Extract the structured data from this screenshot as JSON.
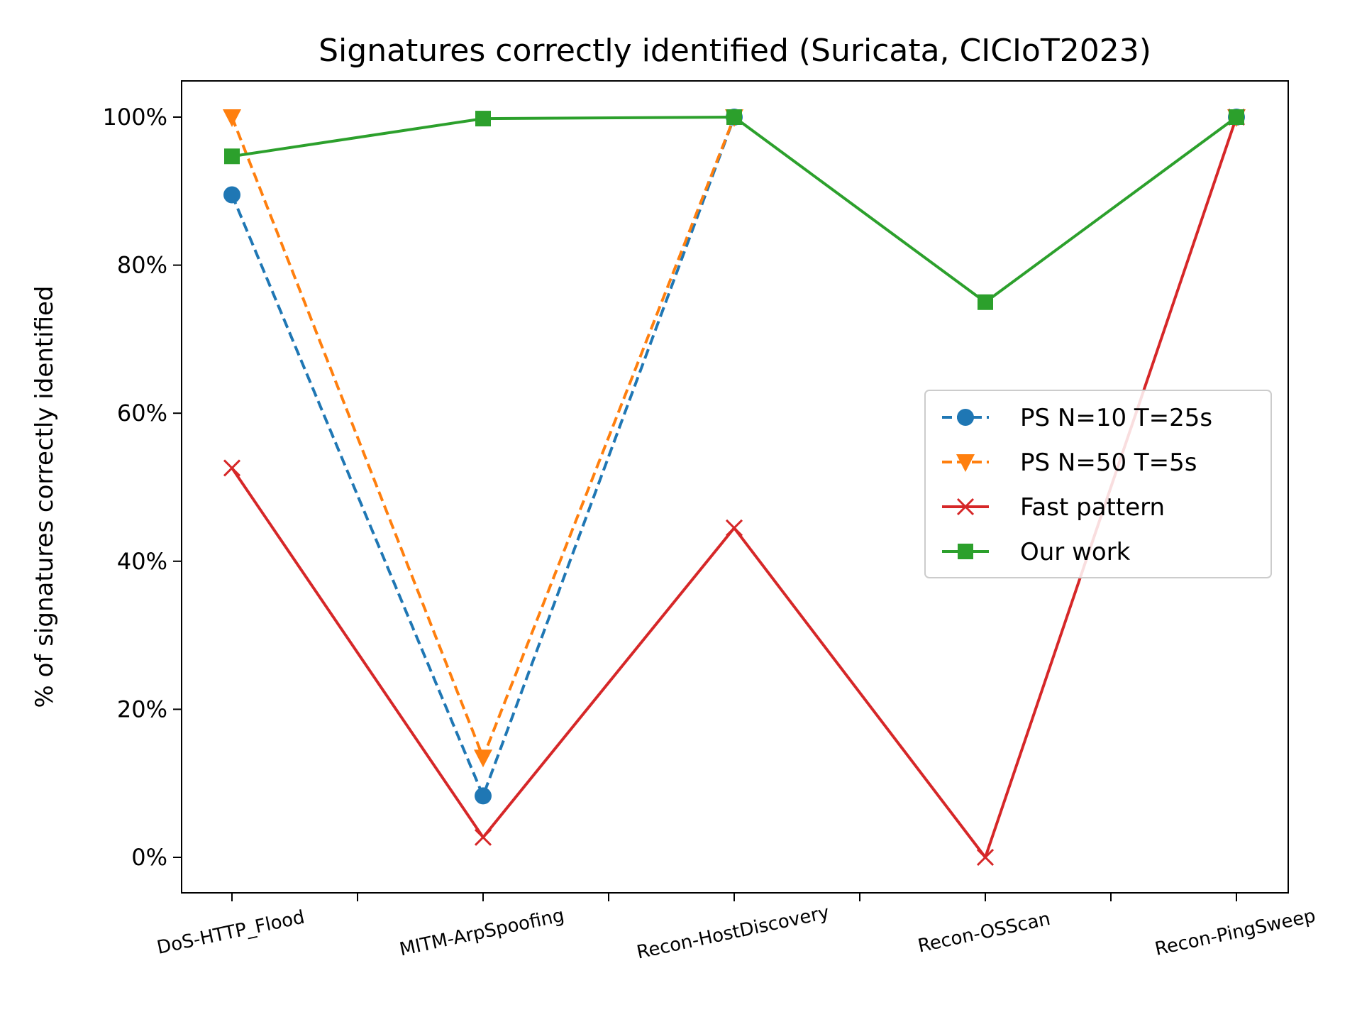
{
  "chart_data": {
    "type": "line",
    "title": "Signatures correctly identified (Suricata, CICIoT2023)",
    "xlabel": "",
    "ylabel": "% of signatures correctly identified",
    "categories": [
      "DoS-HTTP_Flood",
      "MITM-ArpSpoofing",
      "Recon-HostDiscovery",
      "Recon-OSScan",
      "Recon-PingSweep"
    ],
    "ylim": [
      -5,
      105
    ],
    "yticks": [
      0,
      20,
      40,
      60,
      80,
      100
    ],
    "ytick_labels": [
      "0%",
      "20%",
      "40%",
      "60%",
      "80%",
      "100%"
    ],
    "grid": false,
    "legend_position": "center-right",
    "series": [
      {
        "name": "PS N=10 T=25s",
        "color": "#1f77b4",
        "marker": "circle",
        "linestyle": "dashed",
        "values": [
          89.5,
          8.3,
          100,
          null,
          100
        ]
      },
      {
        "name": "PS N=50 T=5s",
        "color": "#ff7f0e",
        "marker": "triangle-down",
        "linestyle": "dashed",
        "values": [
          100,
          13.5,
          100,
          null,
          100
        ]
      },
      {
        "name": "Fast pattern",
        "color": "#d62728",
        "marker": "x",
        "linestyle": "solid",
        "values": [
          52.6,
          2.7,
          44.5,
          0,
          100
        ]
      },
      {
        "name": "Our work",
        "color": "#2ca02c",
        "marker": "square",
        "linestyle": "solid",
        "values": [
          94.7,
          99.8,
          100,
          75,
          100
        ]
      }
    ]
  }
}
